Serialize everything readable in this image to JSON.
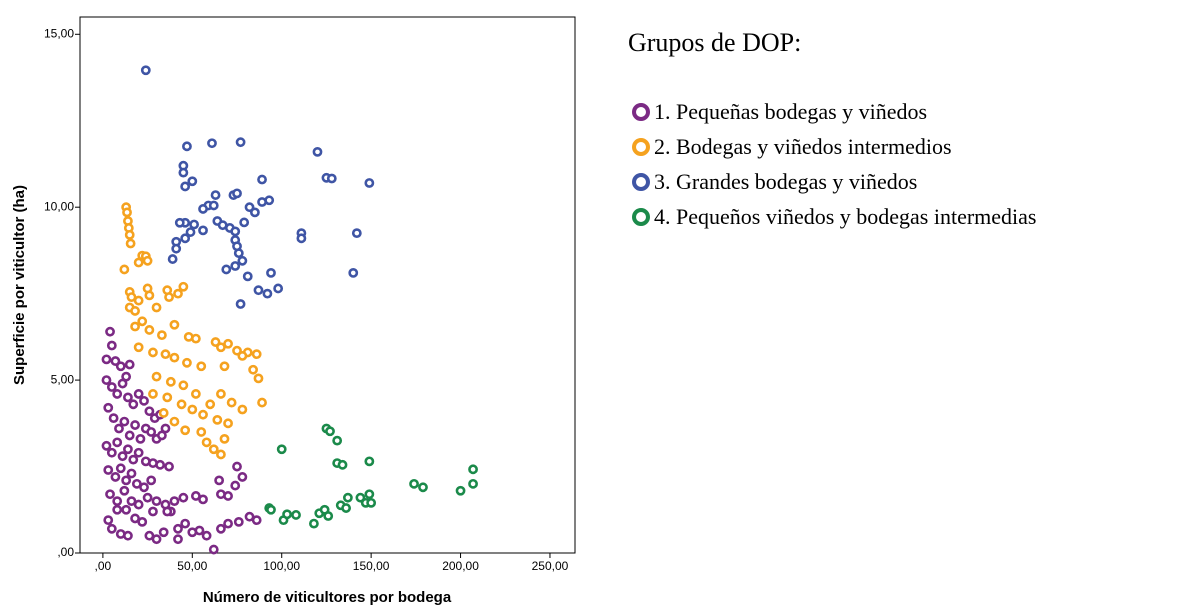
{
  "chart_data": {
    "type": "scatter",
    "xlabel": "Número de viticultores por bodega",
    "ylabel": "Superficie por viticultor (ha)",
    "legend_title": "Grupos de DOP:",
    "xlim": [
      -12.8,
      264
    ],
    "ylim": [
      0,
      15.5
    ],
    "xticks": [
      {
        "value": 0,
        "label": ",00"
      },
      {
        "value": 50,
        "label": "50,00"
      },
      {
        "value": 100,
        "label": "100,00"
      },
      {
        "value": 150,
        "label": "150,00"
      },
      {
        "value": 200,
        "label": "200,00"
      },
      {
        "value": 250,
        "label": "250,00"
      }
    ],
    "yticks": [
      {
        "value": 0,
        "label": ",00"
      },
      {
        "value": 5,
        "label": "5,00"
      },
      {
        "value": 10,
        "label": "10,00"
      },
      {
        "value": 15,
        "label": "15,00"
      }
    ],
    "series": [
      {
        "name": "1. Pequeñas bodegas y viñedos",
        "color": "#7b2a84",
        "x": [
          2,
          4,
          5,
          7,
          10,
          13,
          15,
          2,
          5,
          8,
          11,
          14,
          17,
          20,
          23,
          26,
          29,
          32,
          35,
          3,
          6,
          9,
          12,
          15,
          18,
          21,
          24,
          27,
          30,
          33,
          2,
          5,
          8,
          11,
          14,
          17,
          20,
          24,
          28,
          32,
          37,
          3,
          7,
          10,
          13,
          16,
          19,
          23,
          27,
          4,
          8,
          12,
          16,
          20,
          25,
          30,
          35,
          40,
          45,
          52,
          56,
          66,
          70,
          74,
          78,
          75,
          65,
          3,
          5,
          10,
          14,
          18,
          22,
          26,
          30,
          34,
          38,
          42,
          46,
          50,
          54,
          58,
          62,
          66,
          70,
          76,
          82,
          86,
          42,
          36,
          28,
          13,
          8
        ],
        "y": [
          5.6,
          6.4,
          6.0,
          5.55,
          5.4,
          5.1,
          5.45,
          5.0,
          4.8,
          4.6,
          4.9,
          4.5,
          4.3,
          4.6,
          4.4,
          4.1,
          3.9,
          4.0,
          3.6,
          4.2,
          3.9,
          3.6,
          3.8,
          3.4,
          3.7,
          3.3,
          3.6,
          3.5,
          3.3,
          3.4,
          3.1,
          2.9,
          3.2,
          2.8,
          3.0,
          2.7,
          2.9,
          2.65,
          2.6,
          2.55,
          2.5,
          2.4,
          2.2,
          2.45,
          2.1,
          2.3,
          2.0,
          1.9,
          2.1,
          1.7,
          1.5,
          1.8,
          1.5,
          1.4,
          1.6,
          1.5,
          1.4,
          1.5,
          1.6,
          1.65,
          1.55,
          1.7,
          1.65,
          1.95,
          2.2,
          2.5,
          2.1,
          0.95,
          0.7,
          0.55,
          0.5,
          1.0,
          0.9,
          0.5,
          0.4,
          0.6,
          1.2,
          0.7,
          0.85,
          0.6,
          0.65,
          0.5,
          0.1,
          0.7,
          0.85,
          0.9,
          1.05,
          0.95,
          0.4,
          1.2,
          1.2,
          1.25,
          1.25
        ]
      },
      {
        "name": "2. Bodegas y viñedos intermedios",
        "color": "#f5a21f",
        "x": [
          13,
          13.5,
          14,
          14.5,
          15,
          15.5,
          22,
          24,
          20,
          25,
          12,
          15,
          16,
          15,
          18,
          20,
          25,
          26,
          30,
          36,
          37,
          45,
          42,
          18,
          22,
          26,
          33,
          40,
          48,
          52,
          63,
          66,
          70,
          75,
          81,
          86,
          20,
          28,
          35,
          40,
          47,
          55,
          68,
          78,
          84,
          87,
          30,
          38,
          45,
          52,
          60,
          66,
          72,
          78,
          89,
          44,
          50,
          56,
          64,
          70,
          40,
          46,
          55,
          58,
          62,
          66,
          68,
          36,
          28,
          34
        ],
        "y": [
          10.0,
          9.85,
          9.6,
          9.4,
          9.2,
          8.95,
          8.6,
          8.58,
          8.4,
          8.45,
          8.2,
          7.55,
          7.4,
          7.1,
          7.0,
          7.3,
          7.65,
          7.45,
          7.1,
          7.6,
          7.4,
          7.7,
          7.5,
          6.55,
          6.7,
          6.45,
          6.3,
          6.6,
          6.25,
          6.2,
          6.1,
          5.95,
          6.05,
          5.85,
          5.8,
          5.75,
          5.95,
          5.8,
          5.75,
          5.65,
          5.5,
          5.4,
          5.4,
          5.7,
          5.3,
          5.05,
          5.1,
          4.95,
          4.85,
          4.6,
          4.3,
          4.6,
          4.35,
          4.15,
          4.35,
          4.3,
          4.15,
          4.0,
          3.85,
          3.75,
          3.8,
          3.55,
          3.5,
          3.2,
          3.0,
          2.85,
          3.3,
          4.5,
          4.6,
          4.05
        ]
      },
      {
        "name": "3. Grandes bodegas y viñedos",
        "color": "#3f55a5",
        "x": [
          24,
          47,
          61,
          77,
          120,
          45,
          45,
          46,
          50,
          89,
          125,
          128,
          149,
          63,
          73,
          75,
          89,
          93,
          59,
          62,
          82,
          85,
          56,
          46,
          43,
          51,
          64,
          67,
          71,
          79,
          74,
          56,
          49,
          111,
          111,
          142,
          41,
          46,
          74,
          75,
          76,
          41,
          39,
          78,
          74,
          69,
          81,
          94,
          140,
          87,
          92,
          98,
          77
        ],
        "y": [
          13.96,
          11.76,
          11.85,
          11.88,
          11.6,
          11.2,
          11.0,
          10.6,
          10.75,
          10.8,
          10.85,
          10.83,
          10.7,
          10.35,
          10.35,
          10.4,
          10.15,
          10.2,
          10.05,
          10.05,
          10.0,
          9.85,
          9.95,
          9.55,
          9.55,
          9.5,
          9.6,
          9.48,
          9.4,
          9.56,
          9.3,
          9.33,
          9.28,
          9.25,
          9.1,
          9.25,
          9.0,
          9.1,
          9.05,
          8.87,
          8.67,
          8.8,
          8.5,
          8.45,
          8.3,
          8.2,
          8.0,
          8.1,
          8.1,
          7.6,
          7.5,
          7.65,
          7.2
        ]
      },
      {
        "name": "4. Pequeños viñedos y bodegas intermedias",
        "color": "#1b8a4a",
        "x": [
          100,
          125,
          127,
          131,
          131,
          134,
          149,
          93,
          94,
          101,
          103,
          108,
          118,
          121,
          124,
          126,
          133,
          136,
          137,
          144,
          147,
          149,
          150,
          174,
          179,
          200,
          207,
          207
        ],
        "y": [
          3.0,
          3.6,
          3.52,
          3.25,
          2.6,
          2.55,
          2.65,
          1.3,
          1.25,
          0.95,
          1.12,
          1.1,
          0.85,
          1.15,
          1.25,
          1.07,
          1.38,
          1.3,
          1.6,
          1.6,
          1.45,
          1.7,
          1.45,
          2.0,
          1.9,
          1.8,
          2.0,
          2.42
        ]
      }
    ]
  }
}
